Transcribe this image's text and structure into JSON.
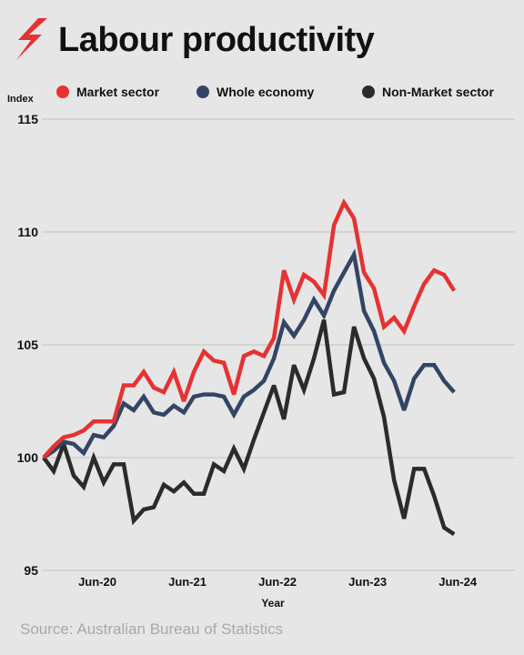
{
  "header": {
    "title": "Labour productivity",
    "logo_icon": "sbs-logo-icon"
  },
  "footer": {
    "source": "Source: Australian Bureau of Statistics"
  },
  "chart_data": {
    "type": "line",
    "title": "Labour productivity",
    "xlabel": "Year",
    "ylabel": "Index",
    "ylim": [
      95,
      115
    ],
    "yticks": [
      95,
      100,
      105,
      110,
      115
    ],
    "xlim": [
      0,
      46
    ],
    "xticks": [
      {
        "x": 5,
        "label": "Jun-20"
      },
      {
        "x": 14,
        "label": "Jun-21"
      },
      {
        "x": 23,
        "label": "Jun-22"
      },
      {
        "x": 32,
        "label": "Jun-23"
      },
      {
        "x": 41,
        "label": "Jun-24"
      }
    ],
    "grid": true,
    "legend_position": "top",
    "series": [
      {
        "name": "Market sector",
        "color": "#e63232",
        "values": [
          100.0,
          100.5,
          100.9,
          101.0,
          101.2,
          101.6,
          101.6,
          101.6,
          103.2,
          103.2,
          103.8,
          103.1,
          102.9,
          103.8,
          102.5,
          103.8,
          104.7,
          104.3,
          104.2,
          102.8,
          104.5,
          104.7,
          104.5,
          105.3,
          108.3,
          107.0,
          108.1,
          107.8,
          107.2,
          110.3,
          111.3,
          110.6,
          108.2,
          107.5,
          105.8,
          106.2,
          105.6,
          106.7,
          107.7,
          108.3,
          108.1,
          107.4
        ]
      },
      {
        "name": "Whole economy",
        "color": "#334565",
        "values": [
          100.0,
          100.3,
          100.7,
          100.6,
          100.2,
          101.0,
          100.9,
          101.4,
          102.4,
          102.1,
          102.7,
          102.0,
          101.9,
          102.3,
          102.0,
          102.7,
          102.8,
          102.8,
          102.7,
          101.9,
          102.7,
          103.0,
          103.4,
          104.4,
          106.0,
          105.4,
          106.1,
          107.0,
          106.3,
          107.4,
          108.2,
          109.0,
          106.5,
          105.6,
          104.2,
          103.4,
          102.1,
          103.5,
          104.1,
          104.1,
          103.4,
          102.9
        ]
      },
      {
        "name": "Non-Market sector",
        "color": "#2b2b2b",
        "values": [
          100.0,
          99.4,
          100.6,
          99.2,
          98.7,
          100.0,
          98.9,
          99.7,
          99.7,
          97.2,
          97.7,
          97.8,
          98.8,
          98.5,
          98.9,
          98.4,
          98.4,
          99.7,
          99.4,
          100.4,
          99.5,
          100.8,
          102.0,
          103.2,
          101.7,
          104.1,
          103.0,
          104.4,
          106.1,
          102.8,
          102.9,
          105.8,
          104.4,
          103.5,
          101.8,
          99.0,
          97.3,
          99.5,
          99.5,
          98.3,
          96.9,
          96.6
        ]
      }
    ]
  }
}
